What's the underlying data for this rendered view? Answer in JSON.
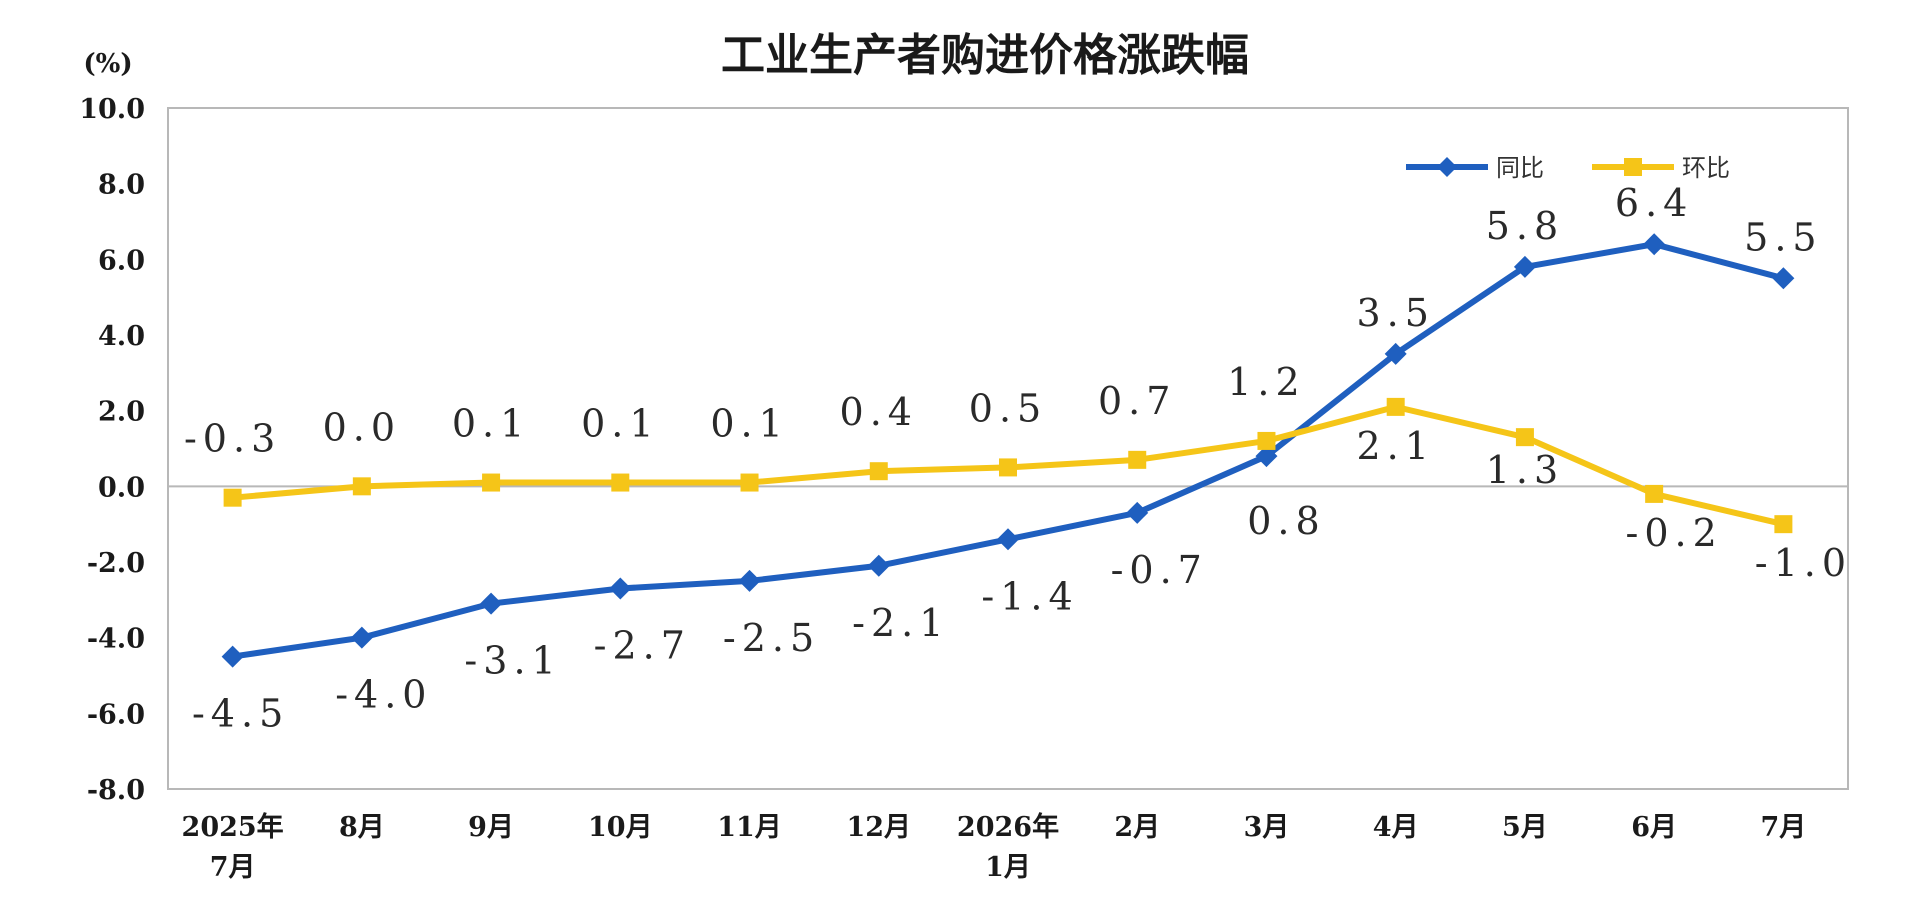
{
  "chart_data": {
    "type": "line",
    "title": "工业生产者购进价格涨跌幅",
    "unit_label": "(%)",
    "y_ticks": [
      "10.0",
      "8.0",
      "6.0",
      "4.0",
      "2.0",
      "0.0",
      "-2.0",
      "-4.0",
      "-6.0",
      "-8.0"
    ],
    "ylim": [
      -8,
      10
    ],
    "categories": [
      [
        "2025年",
        "7月"
      ],
      [
        "8月"
      ],
      [
        "9月"
      ],
      [
        "10月"
      ],
      [
        "11月"
      ],
      [
        "12月"
      ],
      [
        "2026年",
        "1月"
      ],
      [
        "2月"
      ],
      [
        "3月"
      ],
      [
        "4月"
      ],
      [
        "5月"
      ],
      [
        "6月"
      ],
      [
        "7月"
      ]
    ],
    "series": [
      {
        "name": "同比",
        "color": "#1f5fbf",
        "marker": "diamond",
        "values": [
          -4.5,
          -4.0,
          -3.1,
          -2.7,
          -2.5,
          -2.1,
          -1.4,
          -0.7,
          0.8,
          3.5,
          5.8,
          6.4,
          5.5
        ],
        "labels": [
          "-4.5",
          "-4.0",
          "-3.1",
          "-2.7",
          "-2.5",
          "-2.1",
          "-1.4",
          "-0.7",
          "0.8",
          "3.5",
          "5.8",
          "6.4",
          "5.5"
        ]
      },
      {
        "name": "环比",
        "color": "#f5c518",
        "marker": "square",
        "values": [
          -0.3,
          0.0,
          0.1,
          0.1,
          0.1,
          0.4,
          0.5,
          0.7,
          1.2,
          2.1,
          1.3,
          -0.2,
          -1.0
        ],
        "labels": [
          "-0.3",
          "0.0",
          "0.1",
          "0.1",
          "0.1",
          "0.4",
          "0.5",
          "0.7",
          "1.2",
          "2.1",
          "1.3",
          "-0.2",
          "-1.0"
        ]
      }
    ],
    "legend_position": "top-right",
    "grid": false
  }
}
